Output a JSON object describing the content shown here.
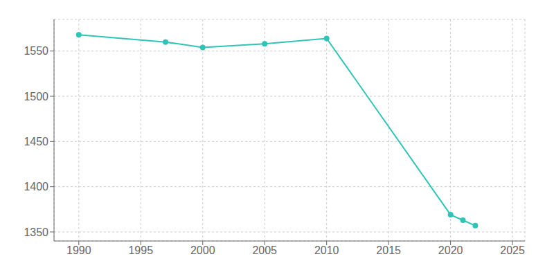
{
  "chart_data": {
    "type": "line",
    "x": [
      1990,
      1997,
      2000,
      2005,
      2010,
      2020,
      2021,
      2022
    ],
    "values": [
      1568,
      1560,
      1554,
      1558,
      1564,
      1369,
      1363,
      1357
    ],
    "color": "#2ec4b6",
    "marker": "circle",
    "xlim": [
      1988,
      2026
    ],
    "ylim": [
      1340,
      1585
    ],
    "xticks": [
      1990,
      1995,
      2000,
      2005,
      2010,
      2015,
      2020,
      2025
    ],
    "yticks": [
      1350,
      1400,
      1450,
      1500,
      1550
    ],
    "grid": true
  }
}
